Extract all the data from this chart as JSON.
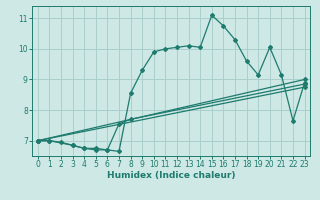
{
  "bg_color": "#cde8e5",
  "grid_color": "#aacfcc",
  "line_color": "#1e7b6e",
  "xlabel": "Humidex (Indice chaleur)",
  "xlim": [
    -0.5,
    23.5
  ],
  "ylim": [
    6.5,
    11.4
  ],
  "yticks": [
    7,
    8,
    9,
    10,
    11
  ],
  "xticks": [
    0,
    1,
    2,
    3,
    4,
    5,
    6,
    7,
    8,
    9,
    10,
    11,
    12,
    13,
    14,
    15,
    16,
    17,
    18,
    19,
    20,
    21,
    22,
    23
  ],
  "lines": [
    {
      "x": [
        0,
        1,
        3,
        4,
        5,
        6,
        7,
        8,
        9,
        10,
        11,
        12,
        13,
        14,
        15,
        16,
        17,
        18,
        19,
        20,
        21,
        22,
        23
      ],
      "y": [
        7.0,
        7.0,
        6.85,
        6.75,
        6.75,
        6.7,
        6.65,
        8.55,
        9.3,
        9.9,
        10.0,
        10.05,
        10.1,
        10.05,
        11.1,
        10.75,
        10.3,
        9.6,
        9.15,
        10.05,
        9.15,
        7.65,
        8.9
      ]
    },
    {
      "x": [
        0,
        1,
        2,
        3,
        4,
        5,
        6,
        7,
        8,
        23
      ],
      "y": [
        7.0,
        7.0,
        6.95,
        6.85,
        6.75,
        6.7,
        6.7,
        7.55,
        7.7,
        8.85
      ]
    },
    {
      "x": [
        0,
        23
      ],
      "y": [
        7.0,
        8.75
      ]
    },
    {
      "x": [
        0,
        23
      ],
      "y": [
        7.0,
        9.0
      ]
    }
  ]
}
